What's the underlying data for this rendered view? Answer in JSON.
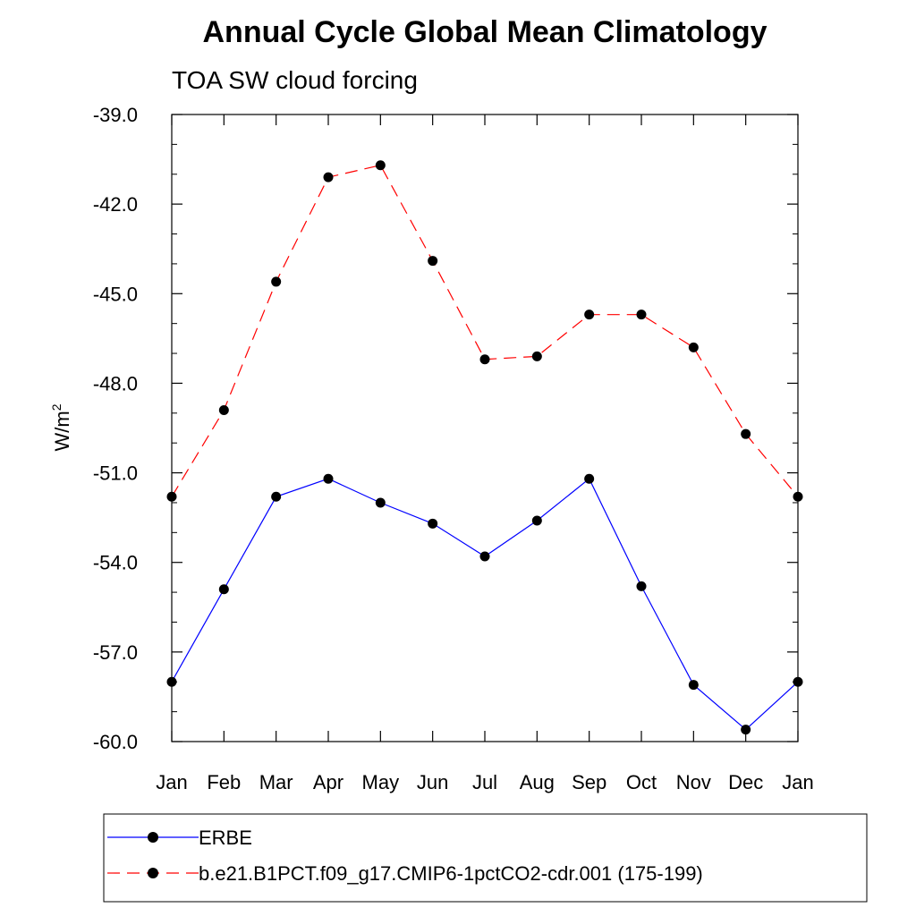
{
  "chart_data": {
    "type": "line",
    "title": "Annual Cycle Global Mean Climatology",
    "subtitle": "TOA SW cloud forcing",
    "ylabel": "W/m",
    "ylabel_superscript": "2",
    "xlabel": "",
    "categories": [
      "Jan",
      "Feb",
      "Mar",
      "Apr",
      "May",
      "Jun",
      "Jul",
      "Aug",
      "Sep",
      "Oct",
      "Nov",
      "Dec",
      "Jan"
    ],
    "ylim": [
      -60.0,
      -39.0
    ],
    "yticks": [
      -60.0,
      -57.0,
      -54.0,
      -51.0,
      -48.0,
      -45.0,
      -42.0,
      -39.0
    ],
    "ytick_labels": [
      "-60.0",
      "-57.0",
      "-54.0",
      "-51.0",
      "-48.0",
      "-45.0",
      "-42.0",
      "-39.0"
    ],
    "grid": false,
    "legend_position": "bottom",
    "series": [
      {
        "name": "ERBE",
        "color": "#0000ff",
        "dash": "solid",
        "values": [
          -58.0,
          -54.9,
          -51.8,
          -51.2,
          -52.0,
          -52.7,
          -53.8,
          -52.6,
          -51.2,
          -54.8,
          -58.1,
          -59.6,
          -58.0
        ]
      },
      {
        "name": "b.e21.B1PCT.f09_g17.CMIP6-1pctCO2-cdr.001 (175-199)",
        "color": "#ff0000",
        "dash": "dashed",
        "values": [
          -51.8,
          -48.9,
          -44.6,
          -41.1,
          -40.7,
          -43.9,
          -47.2,
          -47.1,
          -45.7,
          -45.7,
          -46.8,
          -49.7,
          -51.8
        ]
      }
    ]
  }
}
